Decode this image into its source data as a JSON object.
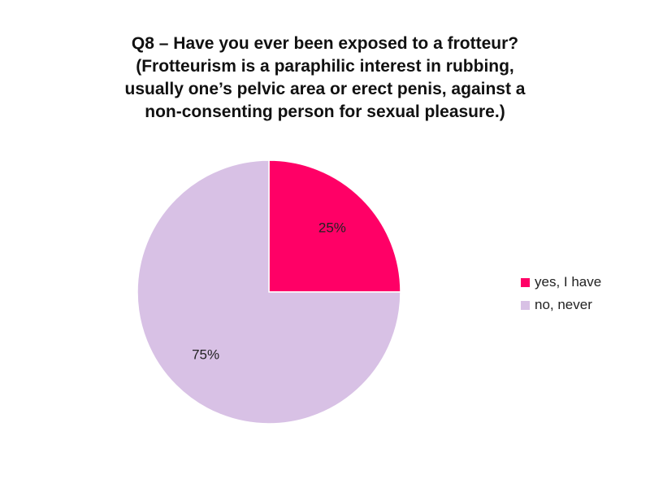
{
  "chart_data": {
    "type": "pie",
    "title_lines": [
      "Q8 – Have you ever been exposed to a frotteur?",
      "(Frotteurism is a paraphilic interest in rubbing,",
      "usually one’s pelvic area or erect penis, against a",
      "non-consenting person for sexual pleasure.)"
    ],
    "slices": [
      {
        "label": "yes, I have",
        "value": 25,
        "value_label": "25%",
        "color": "#ff0066"
      },
      {
        "label": "no, never",
        "value": 75,
        "value_label": "75%",
        "color": "#d8c1e5"
      }
    ],
    "legend_placement": "right"
  }
}
